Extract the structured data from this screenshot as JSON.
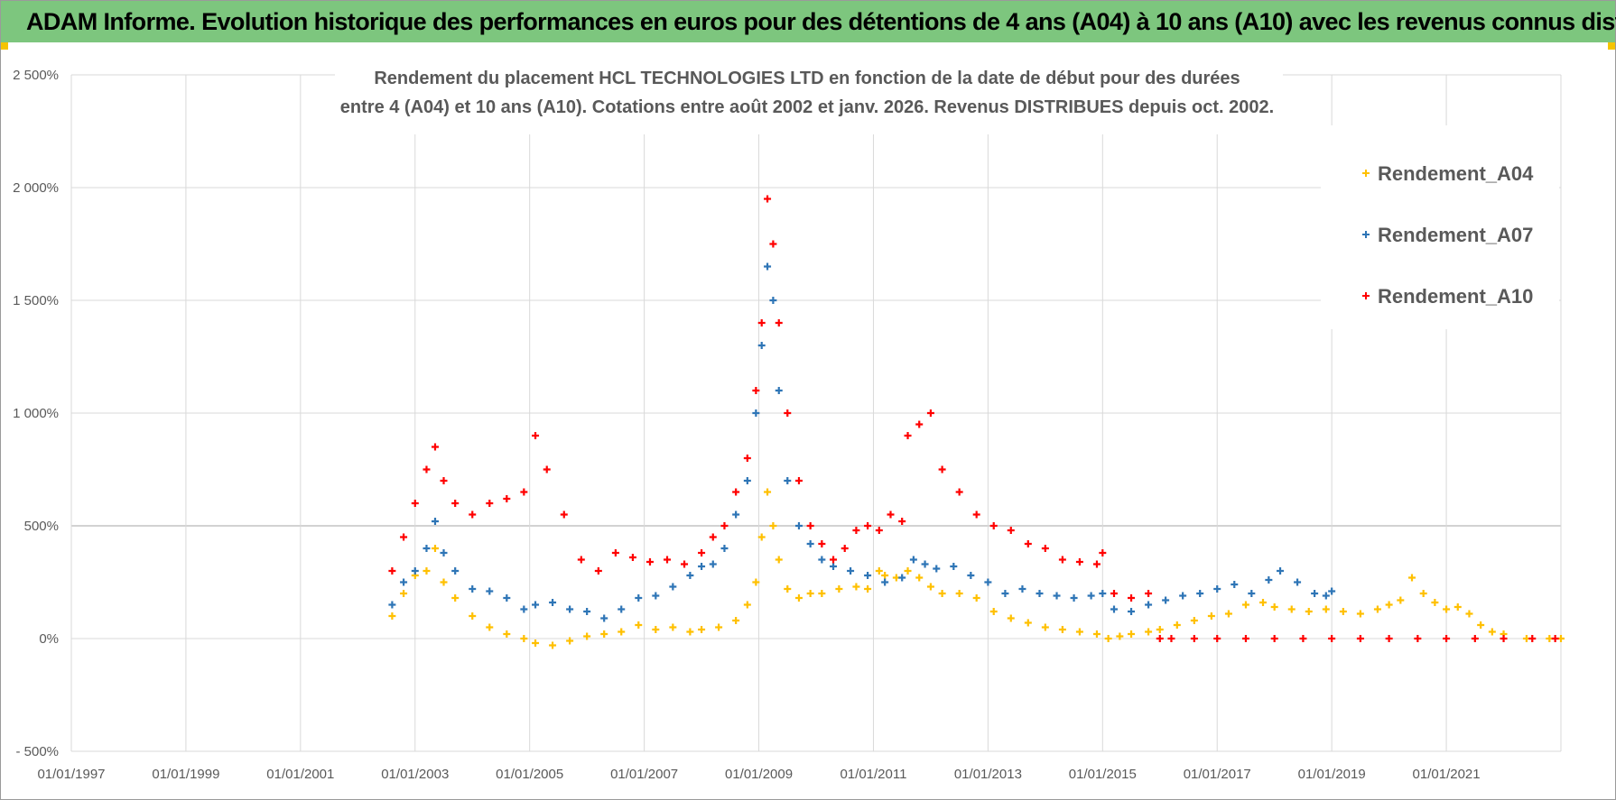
{
  "banner": {
    "title": "ADAM Informe. Evolution historique des performances en euros pour des détentions de 4 ans (A04) à 10 ans (A10) avec les revenus connus distribués"
  },
  "colors": {
    "A04": "#ffc000",
    "A07": "#2e75b6",
    "A10": "#ff0000",
    "banner": "#7dc67e"
  },
  "chart_data": {
    "type": "scatter",
    "title_lines": [
      "Rendement du placement HCL TECHNOLOGIES LTD en fonction de la date de début pour des durées",
      "entre 4 (A04) et 10 ans (A10).  Cotations entre août 2002 et janv. 2026. Revenus DISTRIBUES depuis oct. 2002."
    ],
    "xlabel": "",
    "ylabel": "",
    "xlim": [
      1997.0,
      2023.0
    ],
    "ylim": [
      -500,
      2500
    ],
    "x_tick_values": [
      1997,
      1999,
      2001,
      2003,
      2005,
      2007,
      2009,
      2011,
      2013,
      2015,
      2017,
      2019,
      2021
    ],
    "x_tick_labels": [
      "01/01/1997",
      "01/01/1999",
      "01/01/2001",
      "01/01/2003",
      "01/01/2005",
      "01/01/2007",
      "01/01/2009",
      "01/01/2011",
      "01/01/2013",
      "01/01/2015",
      "01/01/2017",
      "01/01/2019",
      "01/01/2021"
    ],
    "y_tick_values": [
      -500,
      0,
      500,
      1000,
      1500,
      2000,
      2500
    ],
    "y_tick_labels": [
      "- 500%",
      "0%",
      "500%",
      "1 000%",
      "1 500%",
      "2 000%",
      "2 500%"
    ],
    "grid": true,
    "legend_position": "top-right",
    "series": [
      {
        "name": "Rendement_A04",
        "color": "#ffc000",
        "x": [
          2002.6,
          2002.8,
          2003.0,
          2003.2,
          2003.35,
          2003.5,
          2003.7,
          2004.0,
          2004.3,
          2004.6,
          2004.9,
          2005.1,
          2005.4,
          2005.7,
          2006.0,
          2006.3,
          2006.6,
          2006.9,
          2007.2,
          2007.5,
          2007.8,
          2008.0,
          2008.3,
          2008.6,
          2008.8,
          2008.95,
          2009.05,
          2009.15,
          2009.25,
          2009.35,
          2009.5,
          2009.7,
          2009.9,
          2010.1,
          2010.4,
          2010.7,
          2010.9,
          2011.1,
          2011.2,
          2011.4,
          2011.6,
          2011.8,
          2012.0,
          2012.2,
          2012.5,
          2012.8,
          2013.1,
          2013.4,
          2013.7,
          2014.0,
          2014.3,
          2014.6,
          2014.9,
          2015.1,
          2015.3,
          2015.5,
          2015.8,
          2016.0,
          2016.3,
          2016.6,
          2016.9,
          2017.2,
          2017.5,
          2017.8,
          2018.0,
          2018.3,
          2018.6,
          2018.9,
          2019.2,
          2019.5,
          2019.8,
          2020.0,
          2020.2,
          2020.4,
          2020.6,
          2020.8,
          2021.0,
          2021.2,
          2021.4,
          2021.6,
          2021.8,
          2022.0,
          2022.4,
          2022.8,
          2023.0
        ],
        "y": [
          100,
          200,
          280,
          300,
          400,
          250,
          180,
          100,
          50,
          20,
          0,
          -20,
          -30,
          -10,
          10,
          20,
          30,
          60,
          40,
          50,
          30,
          40,
          50,
          80,
          150,
          250,
          450,
          650,
          500,
          350,
          220,
          180,
          200,
          200,
          220,
          230,
          220,
          300,
          280,
          270,
          300,
          270,
          230,
          200,
          200,
          180,
          120,
          90,
          70,
          50,
          40,
          30,
          20,
          0,
          10,
          20,
          30,
          40,
          60,
          80,
          100,
          110,
          150,
          160,
          140,
          130,
          120,
          130,
          120,
          110,
          130,
          150,
          170,
          270,
          200,
          160,
          130,
          140,
          110,
          60,
          30,
          20,
          0,
          0,
          0
        ]
      },
      {
        "name": "Rendement_A07",
        "color": "#2e75b6",
        "x": [
          2002.6,
          2002.8,
          2003.0,
          2003.2,
          2003.35,
          2003.5,
          2003.7,
          2004.0,
          2004.3,
          2004.6,
          2004.9,
          2005.1,
          2005.4,
          2005.7,
          2006.0,
          2006.3,
          2006.6,
          2006.9,
          2007.2,
          2007.5,
          2007.8,
          2008.0,
          2008.2,
          2008.4,
          2008.6,
          2008.8,
          2008.95,
          2009.05,
          2009.15,
          2009.25,
          2009.35,
          2009.5,
          2009.7,
          2009.9,
          2010.1,
          2010.3,
          2010.6,
          2010.9,
          2011.2,
          2011.5,
          2011.7,
          2011.9,
          2012.1,
          2012.4,
          2012.7,
          2013.0,
          2013.3,
          2013.6,
          2013.9,
          2014.2,
          2014.5,
          2014.8,
          2015.0,
          2015.2,
          2015.5,
          2015.8,
          2016.1,
          2016.4,
          2016.7,
          2017.0,
          2017.3,
          2017.6,
          2017.9,
          2018.1,
          2018.4,
          2018.7,
          2018.9,
          2019.0
        ],
        "y": [
          150,
          250,
          300,
          400,
          520,
          380,
          300,
          220,
          210,
          180,
          130,
          150,
          160,
          130,
          120,
          90,
          130,
          180,
          190,
          230,
          280,
          320,
          330,
          400,
          550,
          700,
          1000,
          1300,
          1650,
          1500,
          1100,
          700,
          500,
          420,
          350,
          320,
          300,
          280,
          250,
          270,
          350,
          330,
          310,
          320,
          280,
          250,
          200,
          220,
          200,
          190,
          180,
          190,
          200,
          130,
          120,
          150,
          170,
          190,
          200,
          220,
          240,
          200,
          260,
          300,
          250,
          200,
          190,
          210
        ]
      },
      {
        "name": "Rendement_A10",
        "color": "#ff0000",
        "x": [
          2002.6,
          2002.8,
          2003.0,
          2003.2,
          2003.35,
          2003.5,
          2003.7,
          2004.0,
          2004.3,
          2004.6,
          2004.9,
          2005.1,
          2005.3,
          2005.6,
          2005.9,
          2006.2,
          2006.5,
          2006.8,
          2007.1,
          2007.4,
          2007.7,
          2008.0,
          2008.2,
          2008.4,
          2008.6,
          2008.8,
          2008.95,
          2009.05,
          2009.15,
          2009.25,
          2009.35,
          2009.5,
          2009.7,
          2009.9,
          2010.1,
          2010.3,
          2010.5,
          2010.7,
          2010.9,
          2011.1,
          2011.3,
          2011.5,
          2011.6,
          2011.8,
          2012.0,
          2012.2,
          2012.5,
          2012.8,
          2013.1,
          2013.4,
          2013.7,
          2014.0,
          2014.3,
          2014.6,
          2014.9,
          2015.0,
          2015.2,
          2015.5,
          2015.8,
          2016.0,
          2016.2,
          2016.6,
          2017.0,
          2017.5,
          2018.0,
          2018.5,
          2019.0,
          2019.5,
          2020.0,
          2020.5,
          2021.0,
          2021.5,
          2022.0,
          2022.5,
          2022.9
        ],
        "y": [
          300,
          450,
          600,
          750,
          850,
          700,
          600,
          550,
          600,
          620,
          650,
          900,
          750,
          550,
          350,
          300,
          380,
          360,
          340,
          350,
          330,
          380,
          450,
          500,
          650,
          800,
          1100,
          1400,
          1950,
          1750,
          1400,
          1000,
          700,
          500,
          420,
          350,
          400,
          480,
          500,
          480,
          550,
          520,
          900,
          950,
          1000,
          750,
          650,
          550,
          500,
          480,
          420,
          400,
          350,
          340,
          330,
          380,
          200,
          180,
          200,
          0,
          0,
          0,
          0,
          0,
          0,
          0,
          0,
          0,
          0,
          0,
          0,
          0,
          0,
          0,
          0
        ]
      }
    ]
  }
}
